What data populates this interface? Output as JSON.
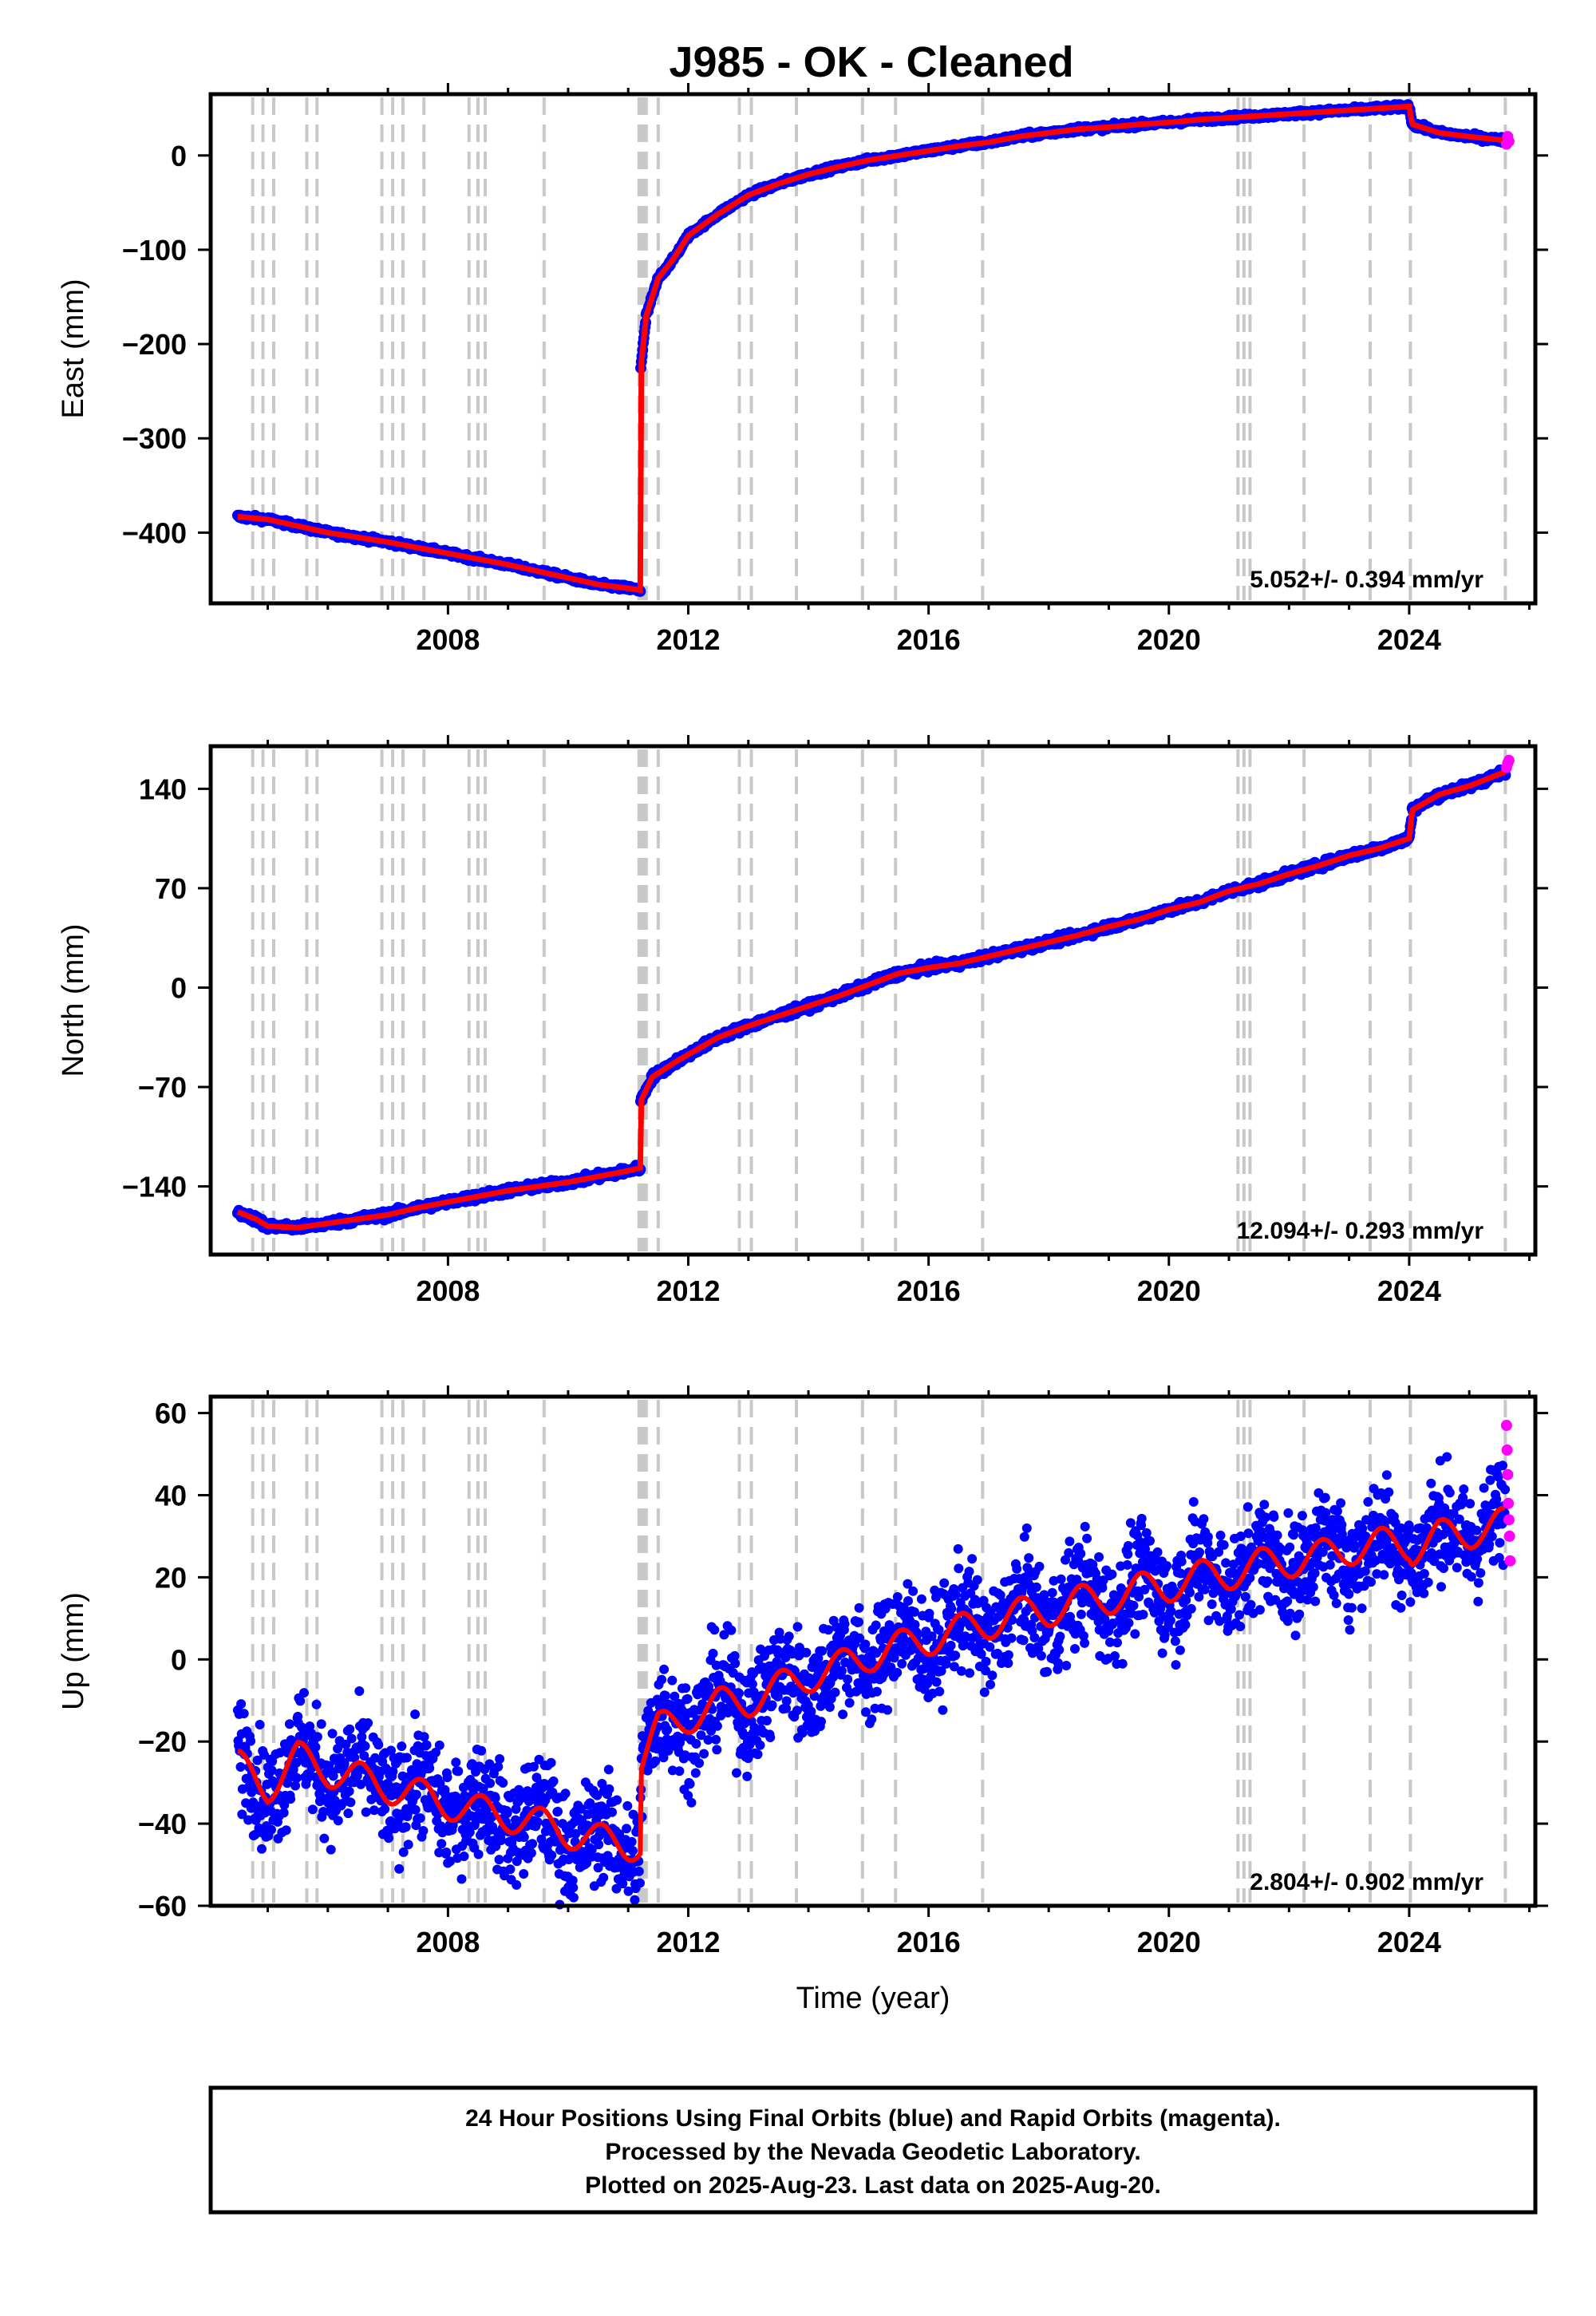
{
  "title": "J985  - OK - Cleaned",
  "caption": {
    "line1": "24 Hour Positions Using Final Orbits (blue) and Rapid Orbits (magenta).",
    "line2": "Processed by the Nevada Geodetic Laboratory.",
    "line3": "Plotted on 2025-Aug-23. Last data on 2025-Aug-20."
  },
  "colors": {
    "final_orbits": "#0000ff",
    "rapid_orbits": "#ff00ff",
    "model_fit": "#ff0000",
    "event_lines": "#c8c8c8"
  },
  "event_lines": [
    2004.75,
    2004.92,
    2005.1,
    2005.65,
    2005.82,
    2006.9,
    2007.08,
    2007.25,
    2007.6,
    2008.35,
    2008.5,
    2008.62,
    2009.6,
    2011.18,
    2011.22,
    2011.26,
    2011.3,
    2011.5,
    2012.85,
    2013.05,
    2013.8,
    2014.9,
    2015.45,
    2016.9,
    2021.15,
    2021.25,
    2021.35,
    2022.25,
    2023.35,
    2024.02,
    2025.6
  ],
  "chart_data": [
    {
      "type": "scatter",
      "panel": "east",
      "ylabel": "East (mm)",
      "xlabel": "",
      "xlim": [
        2004.05,
        2026.1
      ],
      "ylim": [
        -475,
        65
      ],
      "xticks": [
        "2008",
        "2012",
        "2016",
        "2020",
        "2024"
      ],
      "yticks": [
        "0",
        "−100",
        "−200",
        "−300",
        "−400"
      ],
      "rate_label": "5.052+/- 0.394 mm/yr",
      "x": [
        2004.5,
        2005.0,
        2005.5,
        2006.0,
        2006.5,
        2007.0,
        2007.5,
        2008.0,
        2008.5,
        2009.0,
        2009.5,
        2010.0,
        2010.5,
        2011.0,
        2011.2,
        2011.21,
        2011.3,
        2011.5,
        2011.75,
        2012.0,
        2012.5,
        2013.0,
        2013.5,
        2014.0,
        2014.5,
        2015.0,
        2015.5,
        2016.0,
        2016.5,
        2017.0,
        2017.5,
        2018.0,
        2018.5,
        2019.0,
        2019.5,
        2020.0,
        2020.5,
        2021.0,
        2021.5,
        2022.0,
        2022.5,
        2023.0,
        2023.5,
        2024.0,
        2024.05,
        2024.5,
        2025.0,
        2025.6
      ],
      "y": [
        -383,
        -386,
        -393,
        -400,
        -405,
        -410,
        -416,
        -422,
        -428,
        -434,
        -441,
        -448,
        -455,
        -459,
        -461,
        -225,
        -170,
        -130,
        -110,
        -85,
        -62,
        -42,
        -30,
        -20,
        -12,
        -5,
        0,
        5,
        10,
        14,
        20,
        24,
        28,
        30,
        33,
        35,
        38,
        40,
        42,
        44,
        46,
        48,
        50,
        52,
        33,
        24,
        20,
        16
      ],
      "rapid_x": [
        2025.62,
        2025.64,
        2025.66
      ],
      "rapid_y": [
        12,
        20,
        15
      ]
    },
    {
      "type": "scatter",
      "panel": "north",
      "ylabel": "North (mm)",
      "xlabel": "",
      "xlim": [
        2004.05,
        2026.1
      ],
      "ylim": [
        -188,
        170
      ],
      "xticks": [
        "2008",
        "2012",
        "2016",
        "2020",
        "2024"
      ],
      "yticks": [
        "140",
        "70",
        "0",
        "−70",
        "−140"
      ],
      "rate_label": "12.094+/- 0.293 mm/yr",
      "x": [
        2004.5,
        2004.8,
        2005.0,
        2005.5,
        2006.0,
        2006.5,
        2007.0,
        2007.5,
        2008.0,
        2008.5,
        2009.0,
        2009.5,
        2010.0,
        2010.5,
        2011.0,
        2011.2,
        2011.21,
        2011.4,
        2011.8,
        2012.5,
        2013.0,
        2013.5,
        2014.0,
        2014.5,
        2015.0,
        2015.5,
        2016.0,
        2016.5,
        2017.0,
        2017.5,
        2018.0,
        2018.5,
        2019.0,
        2019.5,
        2020.0,
        2020.5,
        2021.0,
        2021.5,
        2022.0,
        2022.5,
        2023.0,
        2023.5,
        2024.0,
        2024.05,
        2024.5,
        2025.0,
        2025.6
      ],
      "y": [
        -158,
        -163,
        -168,
        -169,
        -166,
        -163,
        -160,
        -155,
        -151,
        -147,
        -143,
        -140,
        -137,
        -133,
        -129,
        -127,
        -80,
        -63,
        -52,
        -35,
        -27,
        -20,
        -13,
        -6,
        2,
        10,
        14,
        17,
        22,
        27,
        32,
        37,
        43,
        48,
        55,
        60,
        68,
        73,
        80,
        86,
        93,
        98,
        105,
        125,
        136,
        142,
        152
      ],
      "rapid_x": [
        2025.62,
        2025.64,
        2025.66
      ],
      "rapid_y": [
        155,
        158,
        160
      ]
    },
    {
      "type": "scatter",
      "panel": "up",
      "ylabel": "Up (mm)",
      "xlabel": "Time (year)",
      "xlim": [
        2004.05,
        2026.1
      ],
      "ylim": [
        -60,
        64
      ],
      "xticks": [
        "2008",
        "2012",
        "2016",
        "2020",
        "2024"
      ],
      "yticks": [
        "60",
        "40",
        "20",
        "0",
        "−20",
        "−40",
        "−60"
      ],
      "rate_label": "2.804+/- 0.902 mm/yr",
      "x": [
        2004.5,
        2005.0,
        2005.5,
        2006.0,
        2006.5,
        2007.0,
        2007.5,
        2008.0,
        2008.5,
        2009.0,
        2009.5,
        2010.0,
        2010.5,
        2011.0,
        2011.2,
        2011.21,
        2011.5,
        2012.0,
        2012.5,
        2013.0,
        2013.5,
        2014.0,
        2014.5,
        2015.0,
        2015.5,
        2016.0,
        2016.5,
        2017.0,
        2017.5,
        2018.0,
        2018.5,
        2019.0,
        2019.5,
        2020.0,
        2020.5,
        2021.0,
        2021.5,
        2022.0,
        2022.5,
        2023.0,
        2023.5,
        2024.0,
        2024.05,
        2024.5,
        2025.0,
        2025.6
      ],
      "y": [
        -26,
        -31,
        -24,
        -27,
        -29,
        -31,
        -33,
        -35,
        -37,
        -38,
        -40,
        -42,
        -44,
        -45,
        -45,
        -25,
        -17,
        -14,
        -11,
        -10,
        -7,
        -4,
        -2,
        1,
        3,
        5,
        7,
        9,
        11,
        12,
        14,
        15,
        17,
        18,
        20,
        21,
        23,
        24,
        25,
        27,
        28,
        28,
        27,
        30,
        31,
        33
      ],
      "rapid_x": [
        2025.62,
        2025.63,
        2025.64,
        2025.65,
        2025.66,
        2025.67,
        2025.68
      ],
      "rapid_y": [
        57,
        51,
        45,
        38,
        34,
        30,
        24
      ]
    }
  ]
}
